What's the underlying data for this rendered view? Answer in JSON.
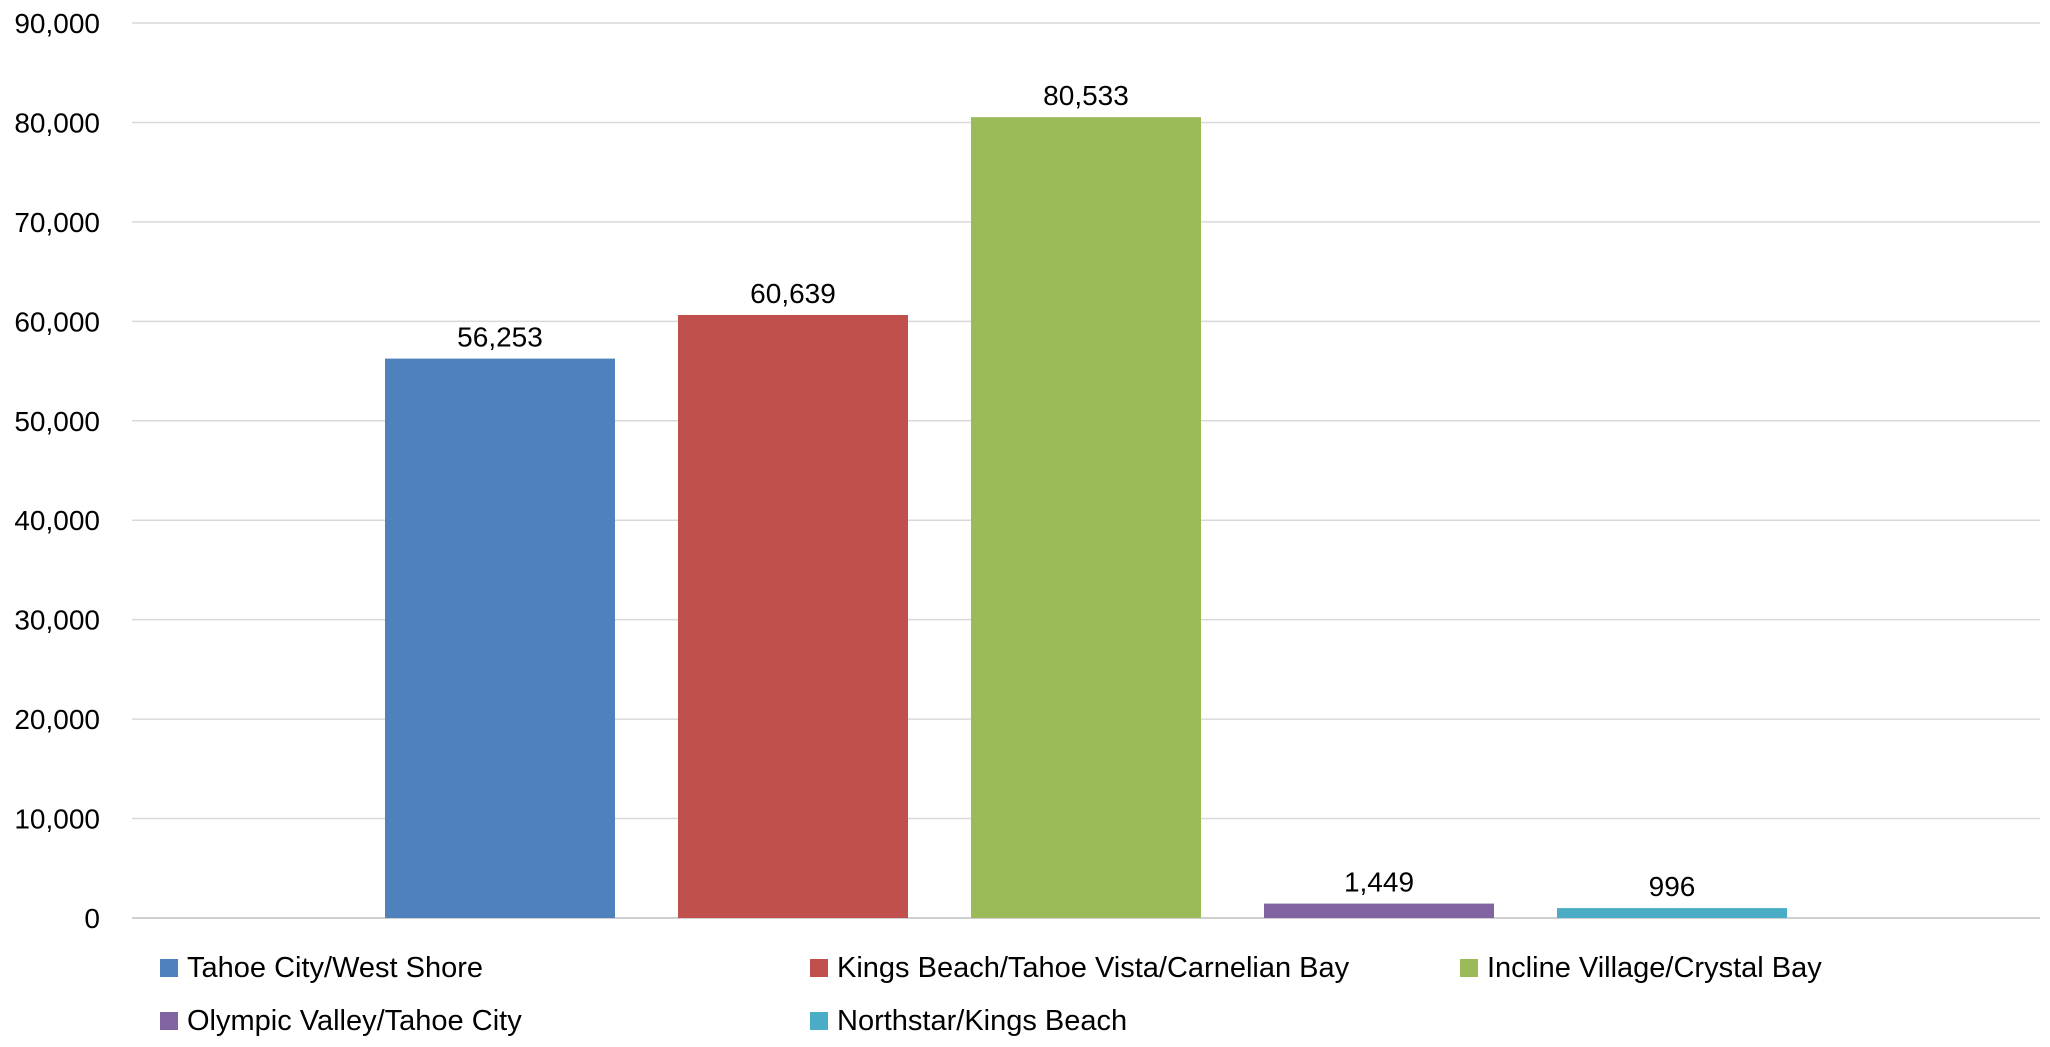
{
  "chart_data": {
    "type": "bar",
    "title": "",
    "xlabel": "",
    "ylabel": "",
    "ylim": [
      0,
      90000
    ],
    "yticks": [
      0,
      10000,
      20000,
      30000,
      40000,
      50000,
      60000,
      70000,
      80000,
      90000
    ],
    "ytick_labels": [
      "0",
      "10,000",
      "20,000",
      "30,000",
      "40,000",
      "50,000",
      "60,000",
      "70,000",
      "80,000",
      "90,000"
    ],
    "grid": true,
    "legend_position": "bottom",
    "series": [
      {
        "name": "Tahoe City/West Shore",
        "value": 56253,
        "label": "56,253",
        "color": "#4F81BD"
      },
      {
        "name": "Kings Beach/Tahoe Vista/Carnelian Bay",
        "value": 60639,
        "label": "60,639",
        "color": "#C0504D"
      },
      {
        "name": "Incline Village/Crystal Bay",
        "value": 80533,
        "label": "80,533",
        "color": "#9BBB59"
      },
      {
        "name": "Olympic Valley/Tahoe City",
        "value": 1449,
        "label": "1,449",
        "color": "#8064A2"
      },
      {
        "name": "Northstar/Kings Beach",
        "value": 996,
        "label": "996",
        "color": "#4BACC6"
      }
    ]
  }
}
